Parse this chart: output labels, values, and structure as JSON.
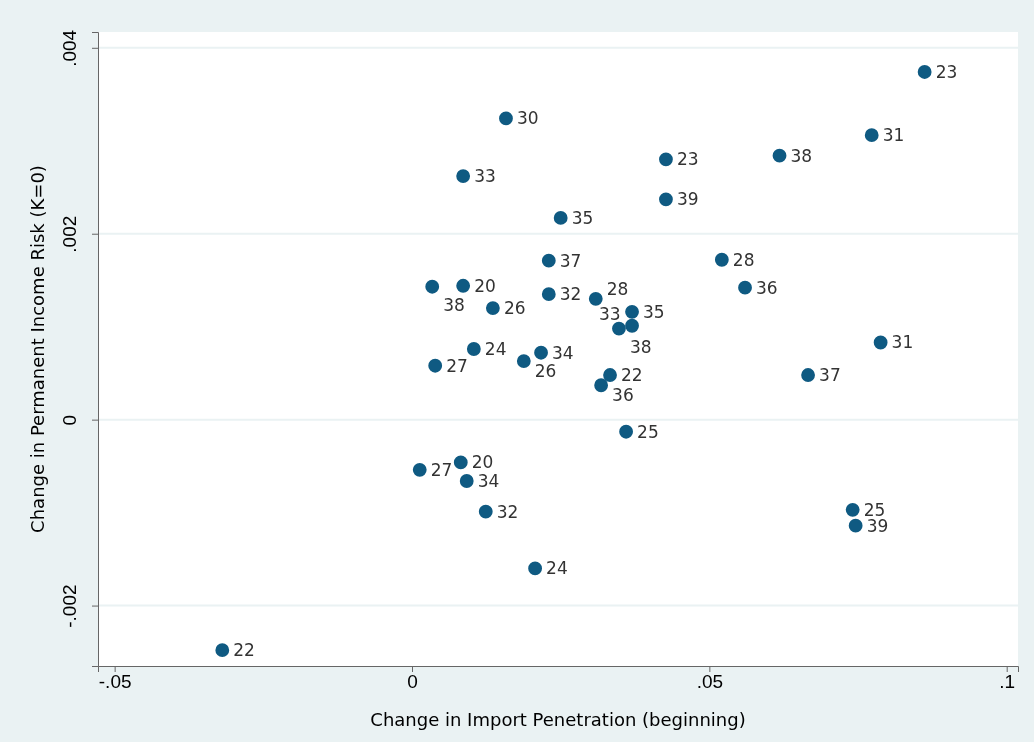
{
  "chart_data": {
    "type": "scatter",
    "xlabel": "Change in Import Penetration (beginning)",
    "ylabel": "Change in Permanent Income Risk (K=0)",
    "x": [
      0.0862,
      0.0773,
      0.0618,
      0.0427,
      0.0427,
      0.0158,
      0.0086,
      0.025,
      0.023,
      0.0521,
      0.056,
      0.0034,
      0.0086,
      0.0136,
      0.023,
      0.0309,
      0.037,
      0.0348,
      0.037,
      0.0788,
      0.0104,
      0.0217,
      0.0039,
      0.0188,
      0.0333,
      0.0318,
      0.0666,
      0.036,
      0.0013,
      0.0082,
      0.0092,
      0.0124,
      0.0741,
      0.0746,
      0.0207,
      -0.0319
    ],
    "series": [
      {
        "color": "#0f5a82",
        "values": [
          0.00374,
          0.00306,
          0.00284,
          0.0028,
          0.00237,
          0.00324,
          0.00262,
          0.00217,
          0.00171,
          0.00172,
          0.00142,
          0.00143,
          0.00144,
          0.0012,
          0.00135,
          0.0013,
          0.00116,
          0.00098,
          0.00101,
          0.00083,
          0.00076,
          0.00072,
          0.00058,
          0.00063,
          0.00048,
          0.00037,
          0.00048,
          -0.00013,
          -0.00054,
          -0.00046,
          -0.00066,
          -0.00099,
          -0.00097,
          -0.00114,
          -0.0016,
          -0.00248
        ]
      }
    ],
    "annotations": [
      {
        "text": "23",
        "x": 0.0862,
        "y": 0.00374
      },
      {
        "text": "31",
        "x": 0.0773,
        "y": 0.00306
      },
      {
        "text": "38",
        "x": 0.0618,
        "y": 0.00284
      },
      {
        "text": "23",
        "x": 0.0427,
        "y": 0.0028
      },
      {
        "text": "39",
        "x": 0.0427,
        "y": 0.00237
      },
      {
        "text": "30",
        "x": 0.0158,
        "y": 0.00324
      },
      {
        "text": "33",
        "x": 0.0086,
        "y": 0.00262
      },
      {
        "text": "35",
        "x": 0.025,
        "y": 0.00217
      },
      {
        "text": "37",
        "x": 0.023,
        "y": 0.00171
      },
      {
        "text": "28",
        "x": 0.0521,
        "y": 0.00172
      },
      {
        "text": "36",
        "x": 0.056,
        "y": 0.00142
      },
      {
        "text": "38",
        "x": 0.0034,
        "y": 0.00143
      },
      {
        "text": "20",
        "x": 0.0086,
        "y": 0.00144
      },
      {
        "text": "26",
        "x": 0.0136,
        "y": 0.0012
      },
      {
        "text": "32",
        "x": 0.023,
        "y": 0.00135
      },
      {
        "text": "28",
        "x": 0.0309,
        "y": 0.0013
      },
      {
        "text": "35",
        "x": 0.037,
        "y": 0.00116
      },
      {
        "text": "38",
        "x": 0.0348,
        "y": 0.00098
      },
      {
        "text": "33",
        "x": 0.037,
        "y": 0.00101
      },
      {
        "text": "31",
        "x": 0.0788,
        "y": 0.00083
      },
      {
        "text": "24",
        "x": 0.0104,
        "y": 0.00076
      },
      {
        "text": "34",
        "x": 0.0217,
        "y": 0.00072
      },
      {
        "text": "27",
        "x": 0.0039,
        "y": 0.00058
      },
      {
        "text": "26",
        "x": 0.0188,
        "y": 0.00063
      },
      {
        "text": "22",
        "x": 0.0333,
        "y": 0.00048
      },
      {
        "text": "36",
        "x": 0.0318,
        "y": 0.00037
      },
      {
        "text": "37",
        "x": 0.0666,
        "y": 0.00048
      },
      {
        "text": "25",
        "x": 0.036,
        "y": -0.00013
      },
      {
        "text": "27",
        "x": 0.0013,
        "y": -0.00054
      },
      {
        "text": "20",
        "x": 0.0082,
        "y": -0.00046
      },
      {
        "text": "34",
        "x": 0.0092,
        "y": -0.00066
      },
      {
        "text": "32",
        "x": 0.0124,
        "y": -0.00099
      },
      {
        "text": "25",
        "x": 0.0741,
        "y": -0.00097
      },
      {
        "text": "39",
        "x": 0.0746,
        "y": -0.00114
      },
      {
        "text": "24",
        "x": 0.0207,
        "y": -0.0016
      },
      {
        "text": "22",
        "x": -0.0319,
        "y": -0.00248
      }
    ],
    "xlim": [
      -0.0528,
      0.1019
    ],
    "xticks": [
      {
        "value": -0.05,
        "label": "-.05"
      },
      0,
      {
        "value": 0.05,
        "label": ".05"
      },
      {
        "value": 0.1,
        "label": ".1"
      }
    ],
    "ylim": [
      -0.00265,
      0.00417
    ],
    "yticks": [
      {
        "value": -0.002,
        "label": "-.002"
      },
      0,
      {
        "value": 0.002,
        "label": ".002"
      },
      {
        "value": 0.004,
        "label": ".004"
      }
    ],
    "grid": "y",
    "marker": "circle"
  }
}
